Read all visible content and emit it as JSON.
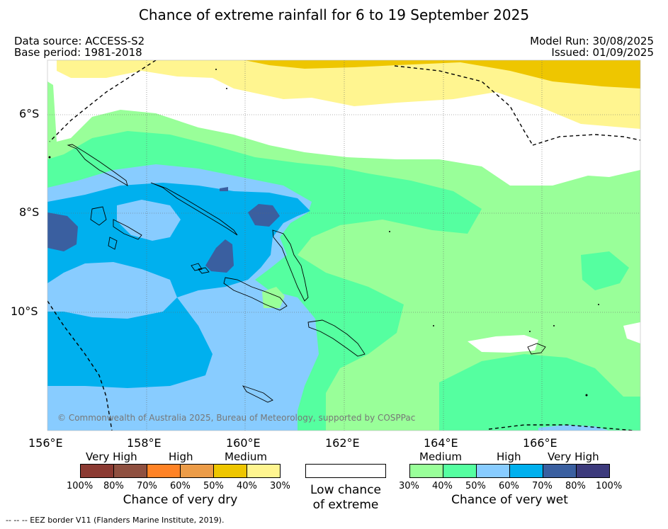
{
  "header": {
    "title": "Chance of extreme rainfall for 6 to 19 September 2025",
    "data_source": "Data source: ACCESS-S2",
    "base_period": "Base period: 1981-2018",
    "model_run": "Model Run: 30/08/2025",
    "issued": "Issued: 01/09/2025"
  },
  "map": {
    "x_ticks": [
      "156°E",
      "158°E",
      "160°E",
      "162°E",
      "164°E",
      "166°E"
    ],
    "y_ticks": [
      "6°S",
      "8°S",
      "10°S"
    ],
    "copyright": "© Commonwealth of Australia 2025, Bureau of Meteorology, supported by COSPPac",
    "colors": {
      "wet_30": "#99ff99",
      "wet_40": "#55ffa0",
      "wet_50": "#88ccff",
      "wet_60": "#00b0ee",
      "wet_70": "#3a5fa0",
      "wet_80": "#3c3a7c",
      "dry_30": "#fff590",
      "dry_40": "#eec600"
    }
  },
  "legend": {
    "dry": {
      "levels": [
        "Very High",
        "High",
        "Medium"
      ],
      "colors": [
        "#8b3a32",
        "#8f5040",
        "#ff8326",
        "#ec9c48",
        "#eec600",
        "#fff590"
      ],
      "percents": [
        "100%",
        "80%",
        "70%",
        "60%",
        "50%",
        "40%",
        "30%"
      ],
      "caption": "Chance of very dry"
    },
    "neutral": {
      "color": "#ffffff",
      "caption_line1": "Low chance",
      "caption_line2": "of extreme"
    },
    "wet": {
      "levels": [
        "Medium",
        "High",
        "Very High"
      ],
      "colors": [
        "#99ff99",
        "#55ffa0",
        "#88ccff",
        "#00b0ee",
        "#3a5fa0",
        "#3c3a7c"
      ],
      "percents": [
        "30%",
        "40%",
        "50%",
        "60%",
        "70%",
        "80%",
        "100%"
      ],
      "caption": "Chance of very wet"
    }
  },
  "footer": {
    "note": "--  --  -- EEZ border V11 (Flanders Marine Institute, 2019)."
  }
}
